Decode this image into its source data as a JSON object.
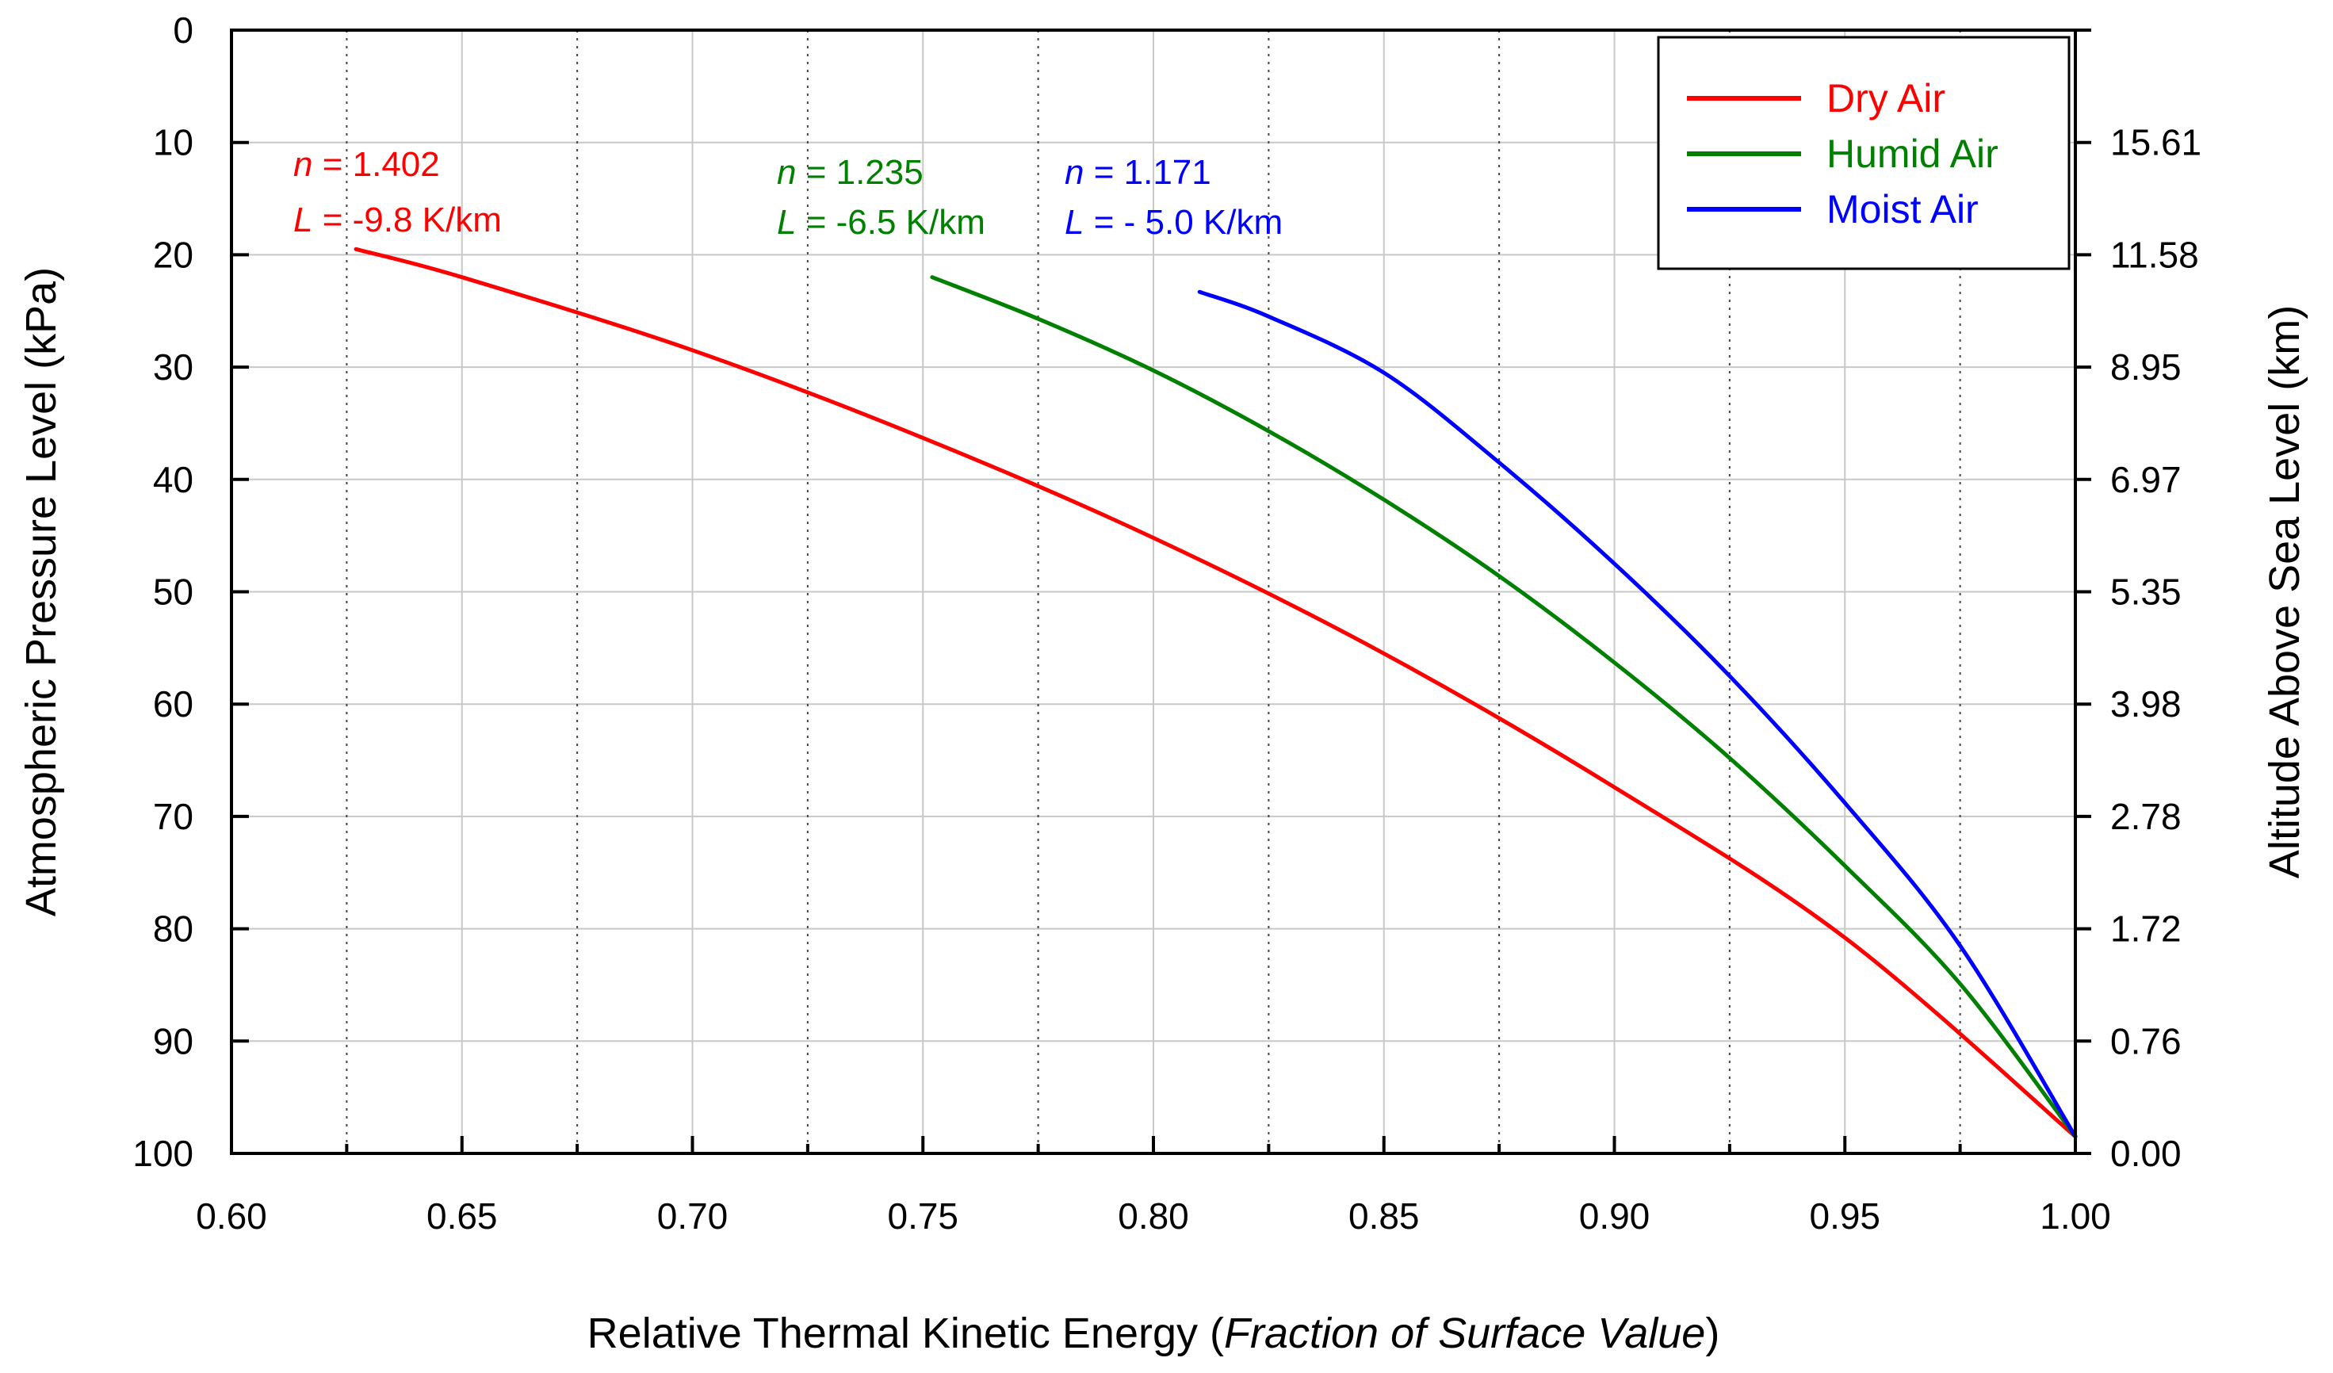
{
  "chart_data": {
    "type": "line",
    "title": "",
    "xlabel": "Relative Thermal Kinetic Energy",
    "xlabel_italic": "Fraction of Surface Value",
    "ylabel": "Atmospheric Pressure Level (kPa)",
    "y2label": "Altitude Above Sea Level (km)",
    "xlim": [
      0.6,
      1.0
    ],
    "ylim": [
      0,
      100
    ],
    "y_inverted": true,
    "x_ticks": [
      "0.60",
      "0.65",
      "0.70",
      "0.75",
      "0.80",
      "0.85",
      "0.90",
      "0.95",
      "1.00"
    ],
    "y_ticks": [
      "0",
      "10",
      "20",
      "30",
      "40",
      "50",
      "60",
      "70",
      "80",
      "90",
      "100"
    ],
    "y2_ticks": [
      {
        "p": 10,
        "label": "15.61"
      },
      {
        "p": 20,
        "label": "11.58"
      },
      {
        "p": 30,
        "label": "8.95"
      },
      {
        "p": 40,
        "label": "6.97"
      },
      {
        "p": 50,
        "label": "5.35"
      },
      {
        "p": 60,
        "label": "3.98"
      },
      {
        "p": 70,
        "label": "2.78"
      },
      {
        "p": 80,
        "label": "1.72"
      },
      {
        "p": 90,
        "label": "0.76"
      },
      {
        "p": 100,
        "label": "0.00"
      }
    ],
    "grid": true,
    "legend_position": "top-right",
    "series": [
      {
        "name": "Dry Air",
        "color": "#ff0000",
        "n_label": "n",
        "n_value": " = 1.402",
        "L_label": "L",
        "L_value": " = -9.8 K/km",
        "x": [
          0.627,
          0.65,
          0.7,
          0.75,
          0.8,
          0.85,
          0.9,
          0.95,
          1.0
        ],
        "y": [
          19.5,
          22.0,
          28.5,
          36.3,
          45.2,
          55.5,
          67.4,
          80.8,
          98.5
        ]
      },
      {
        "name": "Humid Air",
        "color": "#008000",
        "n_label": "n",
        "n_value": " = 1.235",
        "L_label": "L",
        "L_value": " = -6.5 K/km",
        "x": [
          0.752,
          0.775,
          0.8,
          0.825,
          0.85,
          0.875,
          0.9,
          0.925,
          0.95,
          0.975,
          1.0
        ],
        "y": [
          22.0,
          25.7,
          30.3,
          35.7,
          41.8,
          48.6,
          56.3,
          64.8,
          74.4,
          84.9,
          98.5
        ]
      },
      {
        "name": "Moist Air",
        "color": "#0000ff",
        "n_label": "n",
        "n_value": " = 1.171",
        "L_label": "L",
        "L_value": " = - 5.0 K/km",
        "x": [
          0.81,
          0.825,
          0.85,
          0.875,
          0.9,
          0.925,
          0.95,
          0.975,
          1.0
        ],
        "y": [
          23.3,
          25.5,
          30.5,
          38.5,
          47.5,
          57.5,
          68.8,
          81.5,
          98.5
        ]
      }
    ]
  }
}
